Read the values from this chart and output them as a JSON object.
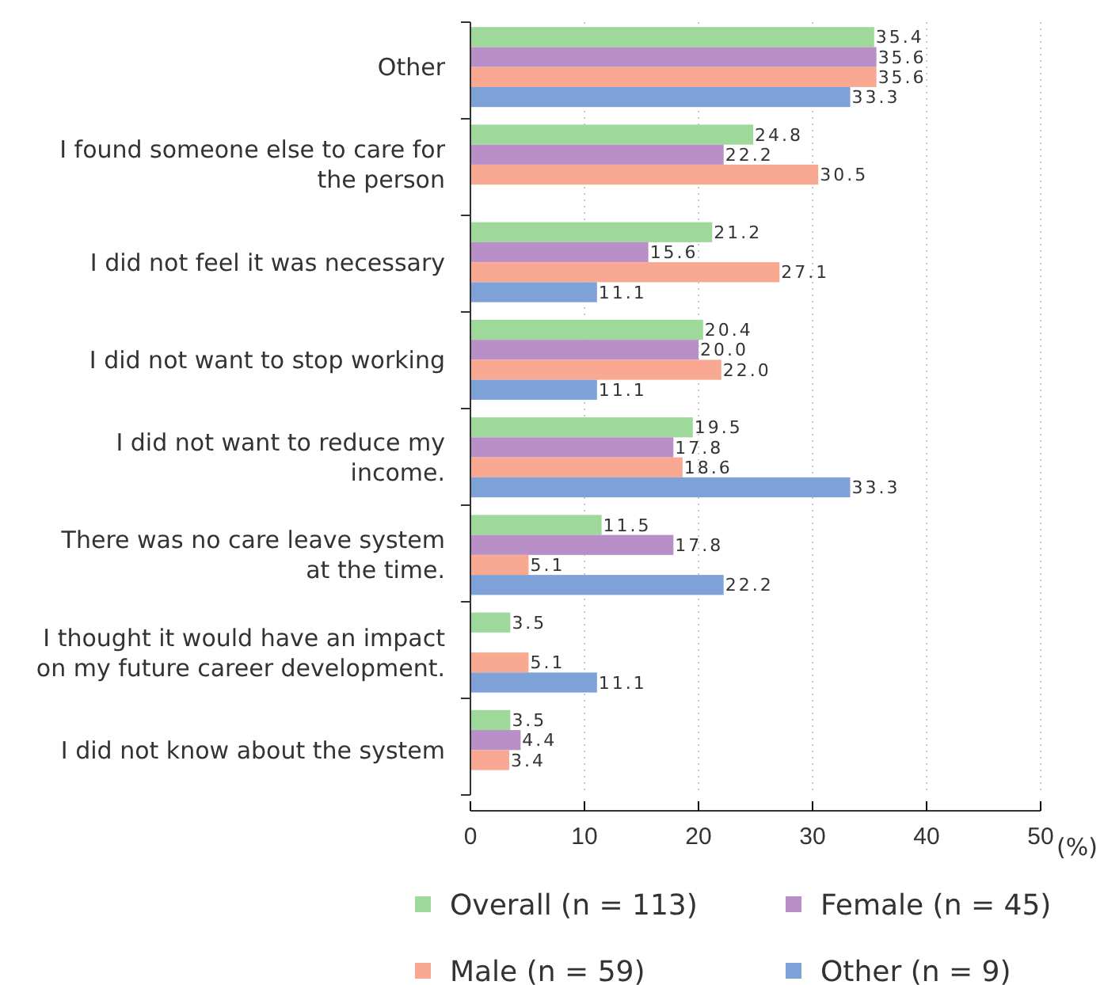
{
  "chart_data": {
    "type": "bar",
    "orientation": "horizontal",
    "xlabel": "(%)",
    "categories": [
      "Other",
      "I found someone else to care for the person",
      "I did not feel it was necessary",
      "I did not want to stop working",
      "I did not want to reduce my income.",
      "There was no care leave system at the time.",
      "I thought it would have an impact on my future career development.",
      "I did not know about the system"
    ],
    "series": [
      {
        "name": "Overall (n = 113)",
        "color": "#9fd89b",
        "values": [
          35.4,
          24.8,
          21.2,
          20.4,
          19.5,
          11.5,
          3.5,
          3.5
        ],
        "value_labels": [
          "35.4",
          "24.8",
          "21.2",
          "20.4",
          "19.5",
          "11.5",
          "3.5",
          "3.5"
        ]
      },
      {
        "name": "Female (n = 45)",
        "color": "#b88fc6",
        "values": [
          35.6,
          22.2,
          15.6,
          20.0,
          17.8,
          17.8,
          null,
          4.4
        ],
        "value_labels": [
          "35.6",
          "22.2",
          "15.6",
          "20.0",
          "17.8",
          "17.8",
          null,
          "4.4"
        ]
      },
      {
        "name": "Male (n = 59)",
        "color": "#f9a892",
        "values": [
          35.6,
          30.5,
          27.1,
          22.0,
          18.6,
          5.1,
          5.1,
          3.4
        ],
        "value_labels": [
          "35.6",
          "30.5",
          "27.1",
          "22.0",
          "18.6",
          "5.1",
          "5.1",
          "3.4"
        ]
      },
      {
        "name": "Other (n = 9)",
        "color": "#7ea1d8",
        "values": [
          33.3,
          null,
          11.1,
          11.1,
          33.3,
          22.2,
          11.1,
          null
        ],
        "value_labels": [
          "33.3",
          null,
          "11.1",
          "11.1",
          "33.3",
          "22.2",
          "11.1",
          null
        ]
      }
    ],
    "xlim": [
      0,
      50
    ],
    "xticks": [
      0,
      10,
      20,
      30,
      40,
      50
    ],
    "grid": "x",
    "legend": "bottom"
  }
}
